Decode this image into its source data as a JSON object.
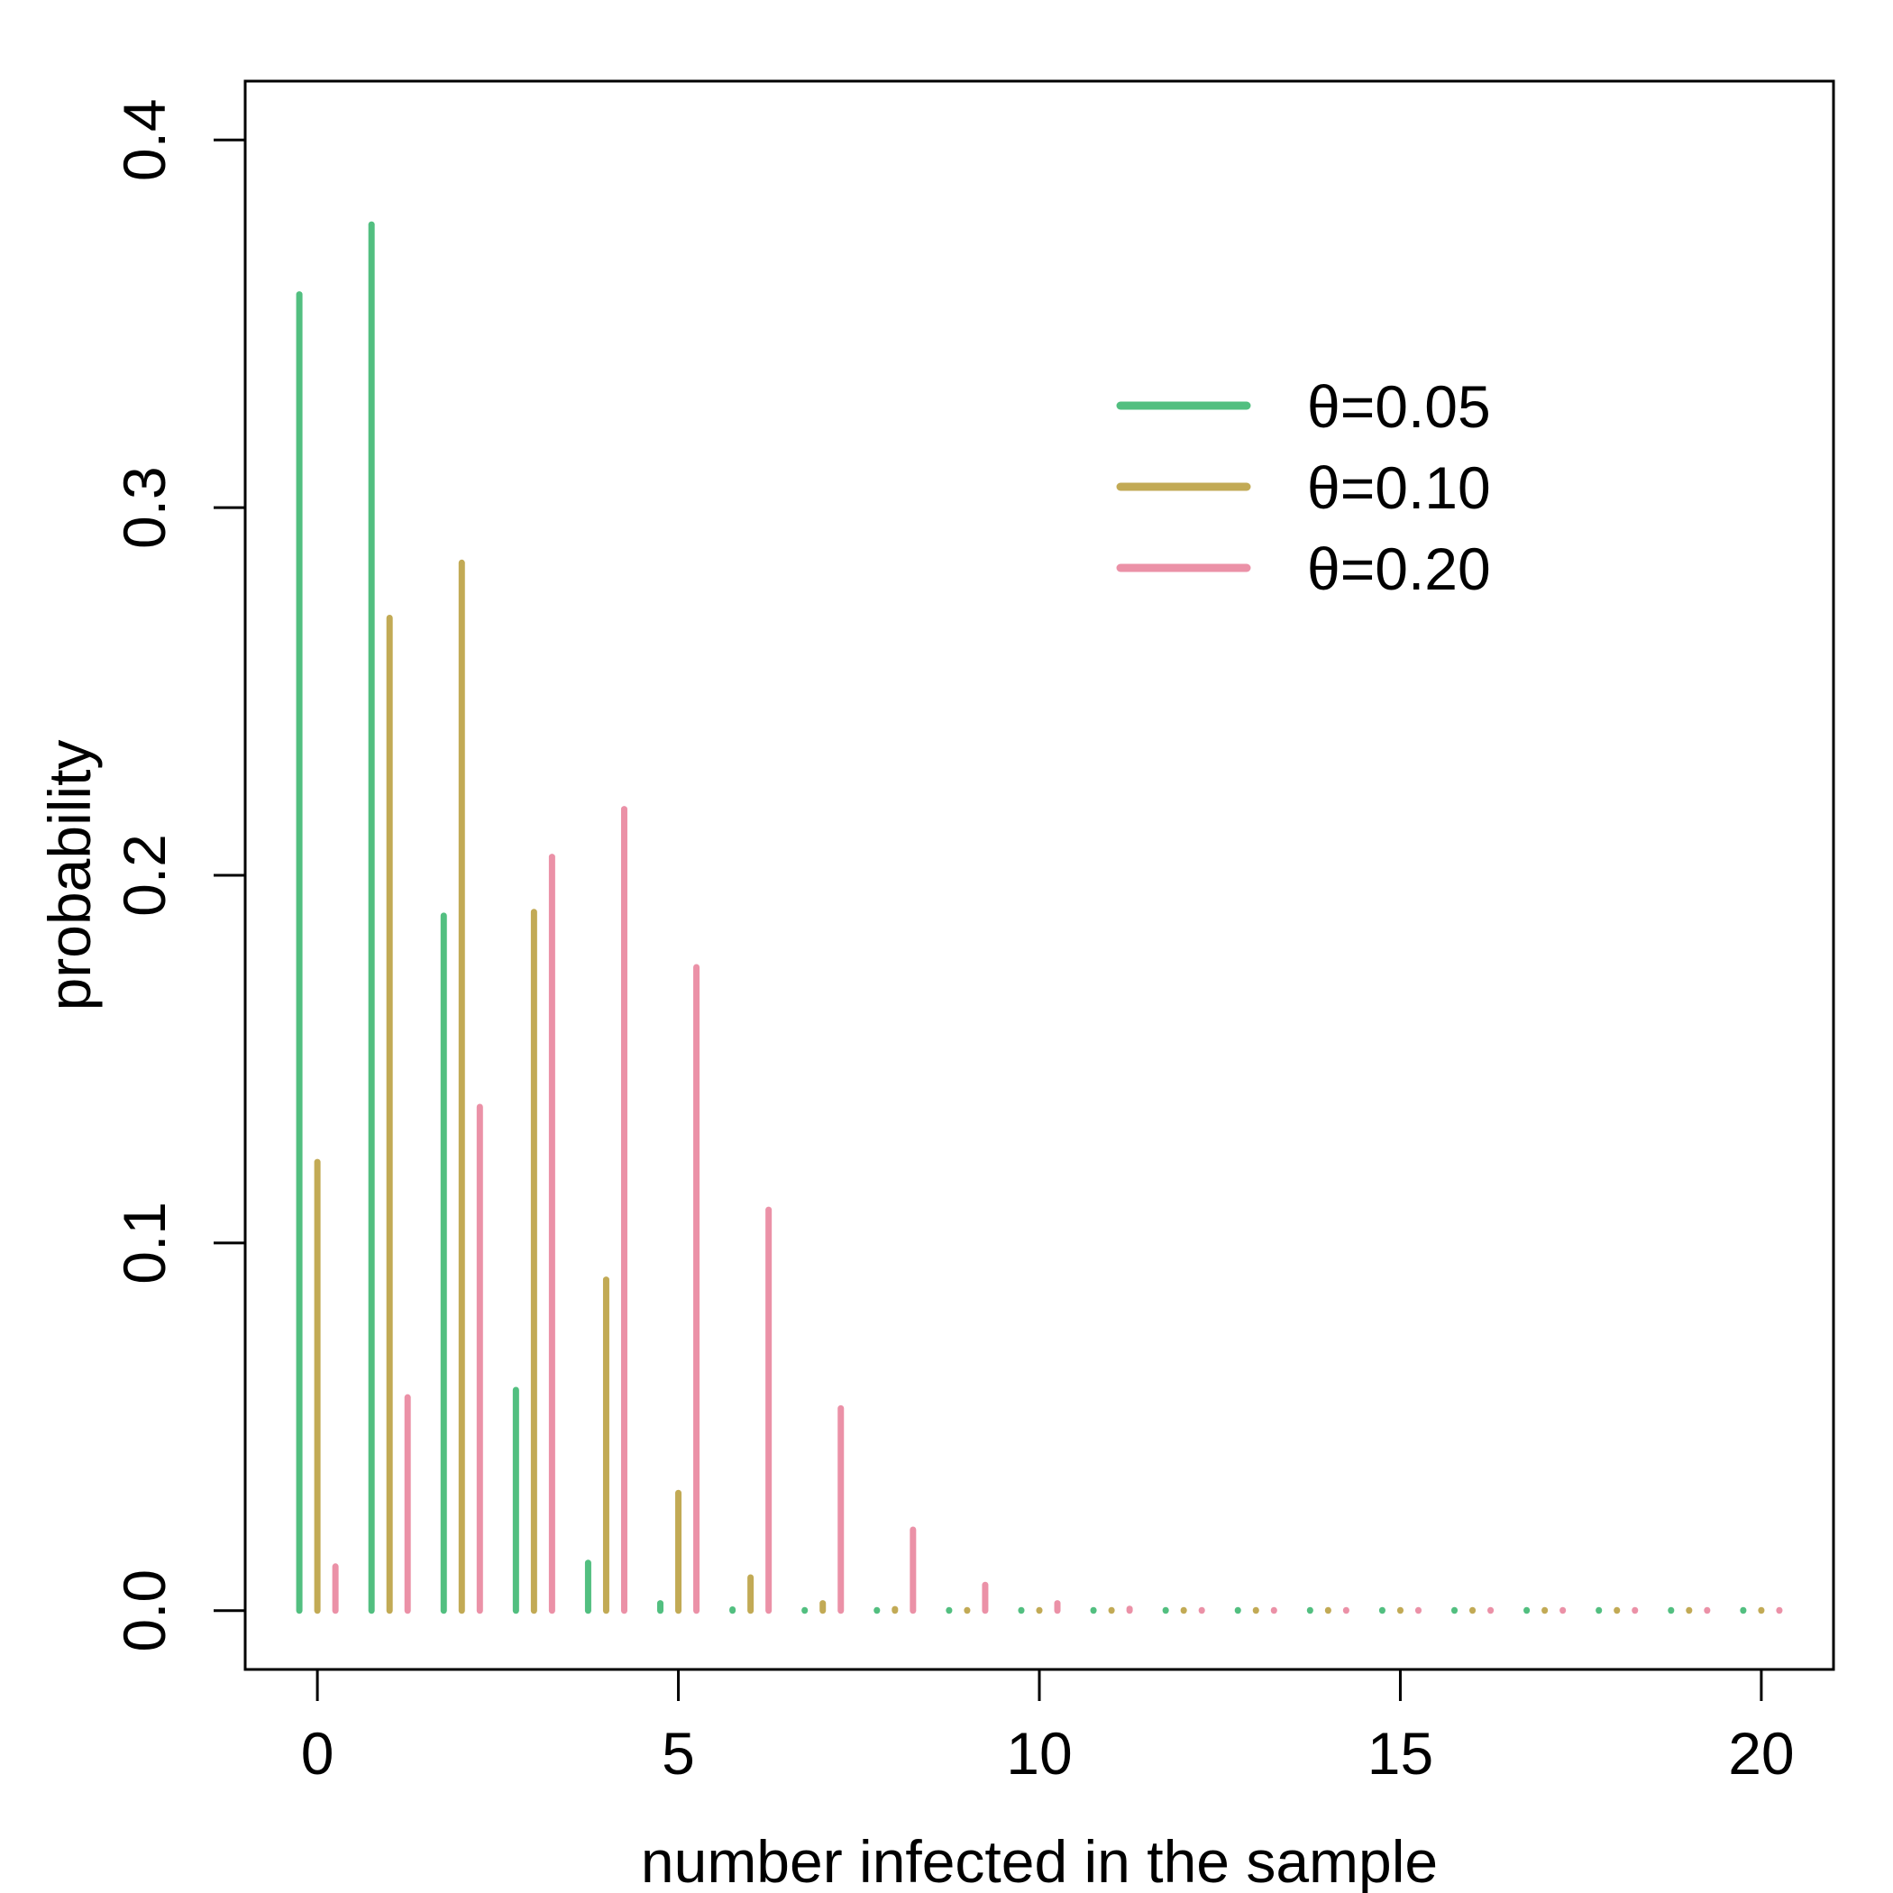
{
  "chart_data": {
    "type": "bar",
    "xlabel": "number infected in the sample",
    "ylabel": "probability",
    "xlim": [
      -1,
      21
    ],
    "ylim": [
      -0.016,
      0.416
    ],
    "xticks": [
      "0",
      "5",
      "10",
      "15",
      "20"
    ],
    "yticks": [
      "0.0",
      "0.1",
      "0.2",
      "0.3",
      "0.4"
    ],
    "grid": false,
    "legend_position": "top-right",
    "x": [
      0,
      1,
      2,
      3,
      4,
      5,
      6,
      7,
      8,
      9,
      10,
      11,
      12,
      13,
      14,
      15,
      16,
      17,
      18,
      19,
      20
    ],
    "series": [
      {
        "name": "θ=0.05",
        "color": "#52bf80",
        "values": [
          0.358,
          0.377,
          0.189,
          0.06,
          0.013,
          0.002,
          0.0003,
          0,
          0,
          0,
          0,
          0,
          0,
          0,
          0,
          0,
          0,
          0,
          0,
          0,
          0
        ]
      },
      {
        "name": "θ=0.10",
        "color": "#c2aa55",
        "values": [
          0.122,
          0.27,
          0.285,
          0.19,
          0.09,
          0.032,
          0.009,
          0.002,
          0.0004,
          0.0001,
          0,
          0,
          0,
          0,
          0,
          0,
          0,
          0,
          0,
          0,
          0
        ]
      },
      {
        "name": "θ=0.20",
        "color": "#eb91a7",
        "values": [
          0.012,
          0.058,
          0.137,
          0.205,
          0.218,
          0.175,
          0.109,
          0.055,
          0.022,
          0.007,
          0.002,
          0.0005,
          0.0001,
          0,
          0,
          0,
          0,
          0,
          0,
          0,
          0
        ]
      }
    ]
  }
}
